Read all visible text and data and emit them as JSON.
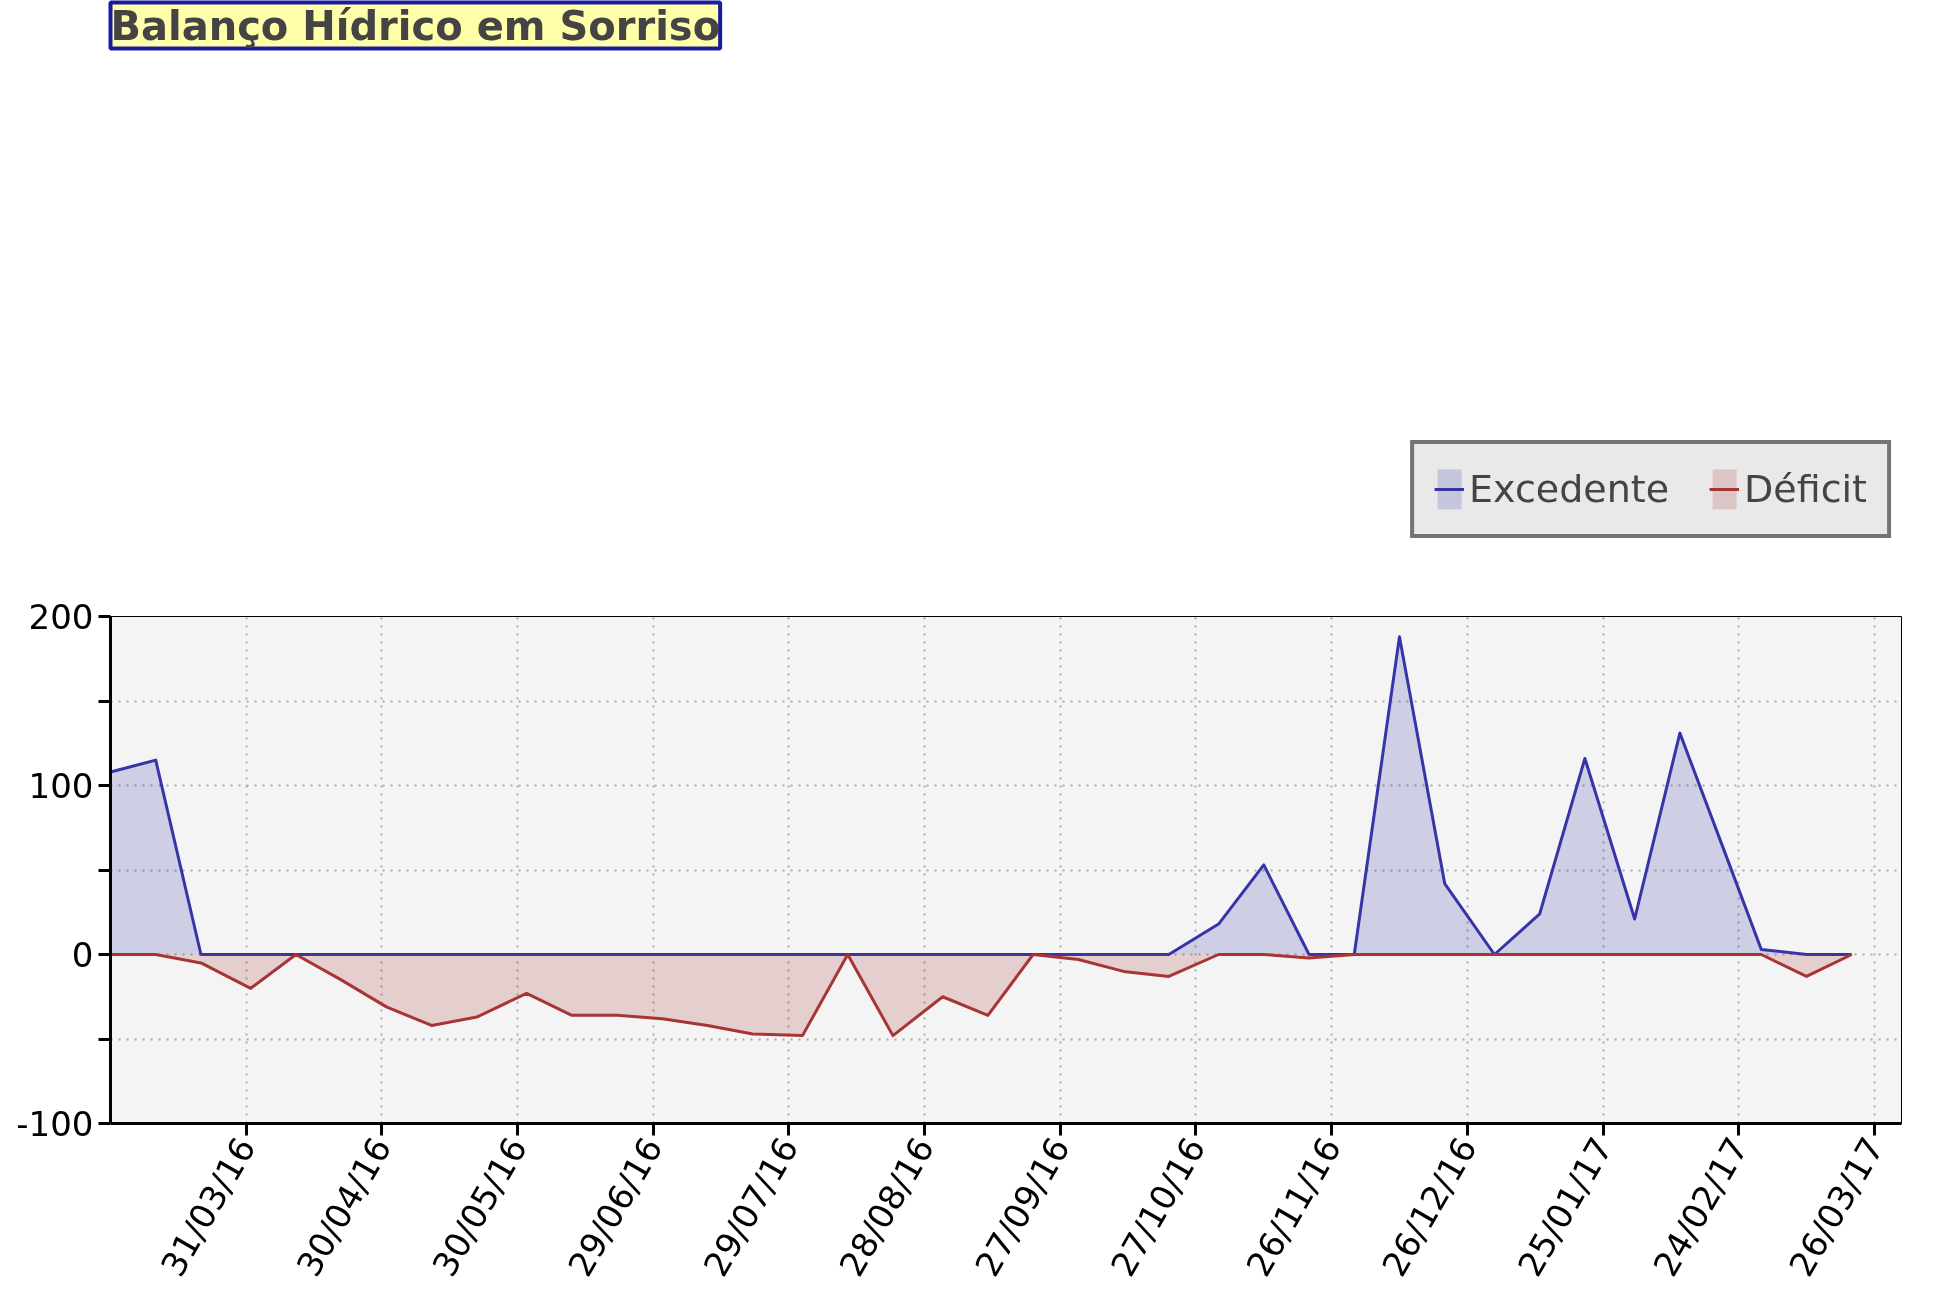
{
  "chart_data": {
    "type": "area",
    "title": "Balanço Hídrico em Sorriso",
    "x": [
      "2016-03-01",
      "2016-03-11",
      "2016-03-21",
      "2016-04-01",
      "2016-04-11",
      "2016-04-21",
      "2016-05-01",
      "2016-05-11",
      "2016-05-21",
      "2016-06-01",
      "2016-06-11",
      "2016-06-21",
      "2016-07-01",
      "2016-07-11",
      "2016-07-21",
      "2016-08-01",
      "2016-08-11",
      "2016-08-21",
      "2016-09-01",
      "2016-09-11",
      "2016-09-21",
      "2016-10-01",
      "2016-10-11",
      "2016-10-21",
      "2016-11-01",
      "2016-11-11",
      "2016-11-21",
      "2016-12-01",
      "2016-12-11",
      "2016-12-21",
      "2017-01-01",
      "2017-01-11",
      "2017-01-21",
      "2017-02-01",
      "2017-02-11",
      "2017-02-21",
      "2017-03-01",
      "2017-03-11",
      "2017-03-21"
    ],
    "series": [
      {
        "name": "Excedente",
        "color": "#3535a8",
        "values": [
          108,
          115,
          0,
          0,
          0,
          0,
          0,
          0,
          0,
          0,
          0,
          0,
          0,
          0,
          0,
          0,
          0,
          0,
          0,
          0,
          0,
          0,
          0,
          0,
          18,
          53,
          0,
          0,
          188,
          42,
          0,
          24,
          116,
          21,
          131,
          60,
          3,
          0,
          0
        ]
      },
      {
        "name": "Déficit",
        "color": "#a83535",
        "values": [
          0,
          0,
          -5,
          -20,
          0,
          -15,
          -31,
          -42,
          -37,
          -23,
          -36,
          -36,
          -38,
          -42,
          -47,
          -48,
          0,
          -48,
          -25,
          -36,
          0,
          -3,
          -10,
          -13,
          0,
          0,
          -2,
          0,
          0,
          0,
          0,
          0,
          0,
          0,
          0,
          0,
          0,
          -13,
          0
        ]
      }
    ],
    "xlim": [
      "2016-03-01",
      "2017-04-01"
    ],
    "xticks": [
      {
        "value": "2016-03-31",
        "label": "31/03/16"
      },
      {
        "value": "2016-04-30",
        "label": "30/04/16"
      },
      {
        "value": "2016-05-30",
        "label": "30/05/16"
      },
      {
        "value": "2016-06-29",
        "label": "29/06/16"
      },
      {
        "value": "2016-07-29",
        "label": "29/07/16"
      },
      {
        "value": "2016-08-28",
        "label": "28/08/16"
      },
      {
        "value": "2016-09-27",
        "label": "27/09/16"
      },
      {
        "value": "2016-10-27",
        "label": "27/10/16"
      },
      {
        "value": "2016-11-26",
        "label": "26/11/16"
      },
      {
        "value": "2016-12-26",
        "label": "26/12/16"
      },
      {
        "value": "2017-01-25",
        "label": "25/01/17"
      },
      {
        "value": "2017-02-24",
        "label": "24/02/17"
      },
      {
        "value": "2017-03-26",
        "label": "26/03/17"
      }
    ],
    "ylim": [
      -100,
      200
    ],
    "yticks": [
      -100,
      {
        "value": -50,
        "label": null
      },
      0,
      {
        "value": 50,
        "label": null
      },
      100,
      {
        "value": 150,
        "label": null
      },
      200
    ],
    "grid": true,
    "legend": "top right"
  }
}
